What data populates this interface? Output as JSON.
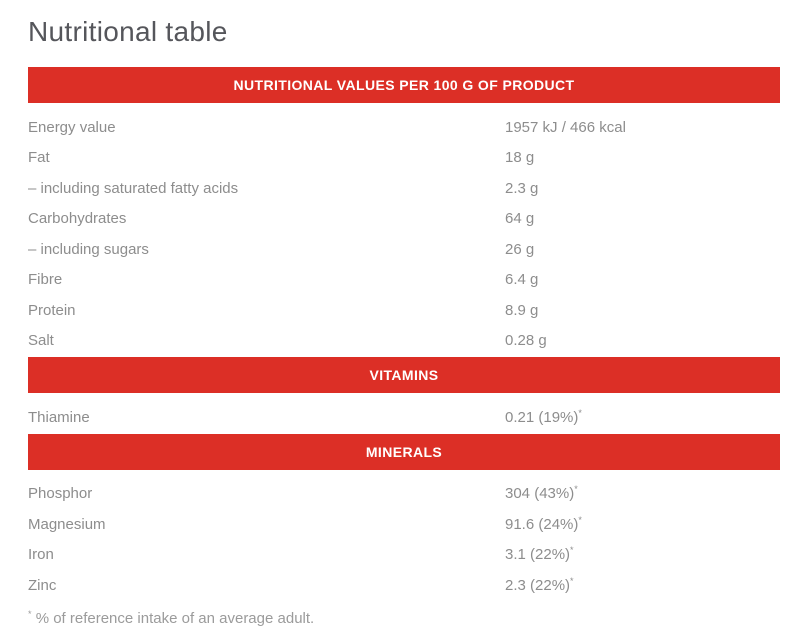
{
  "title": "Nutritional table",
  "colors": {
    "accent_red": "#dc2f26",
    "row_text_gray": "#8d8d8d",
    "title_gray": "#55565b",
    "footnote_gray": "#9b9b9b",
    "header_text_white": "#ffffff"
  },
  "table": {
    "sections": [
      {
        "header": "NUTRITIONAL VALUES PER 100 G OF PRODUCT",
        "rows": [
          {
            "label": "Energy value",
            "value": "1957 kJ / 466 kcal",
            "mark": ""
          },
          {
            "label": "Fat",
            "value": "18 g",
            "mark": ""
          },
          {
            "label": "– including saturated fatty acids",
            "value": "2.3 g",
            "mark": ""
          },
          {
            "label": "Carbohydrates",
            "value": "64 g",
            "mark": ""
          },
          {
            "label": "– including sugars",
            "value": "26 g",
            "mark": ""
          },
          {
            "label": "Fibre",
            "value": "6.4 g",
            "mark": ""
          },
          {
            "label": "Protein",
            "value": "8.9 g",
            "mark": ""
          },
          {
            "label": "Salt",
            "value": "0.28 g",
            "mark": ""
          }
        ]
      },
      {
        "header": "VITAMINS",
        "rows": [
          {
            "label": "Thiamine",
            "value": "0.21 (19%)",
            "mark": "*"
          }
        ]
      },
      {
        "header": "MINERALS",
        "rows": [
          {
            "label": "Phosphor",
            "value": "304 (43%)",
            "mark": "*"
          },
          {
            "label": "Magnesium",
            "value": "91.6 (24%)",
            "mark": "*"
          },
          {
            "label": "Iron",
            "value": "3.1 (22%)",
            "mark": "*"
          },
          {
            "label": "Zinc",
            "value": "2.3 (22%)",
            "mark": "*"
          }
        ]
      }
    ],
    "footnote_symbol": "*",
    "footnote_text": "% of reference intake of an average adult."
  }
}
